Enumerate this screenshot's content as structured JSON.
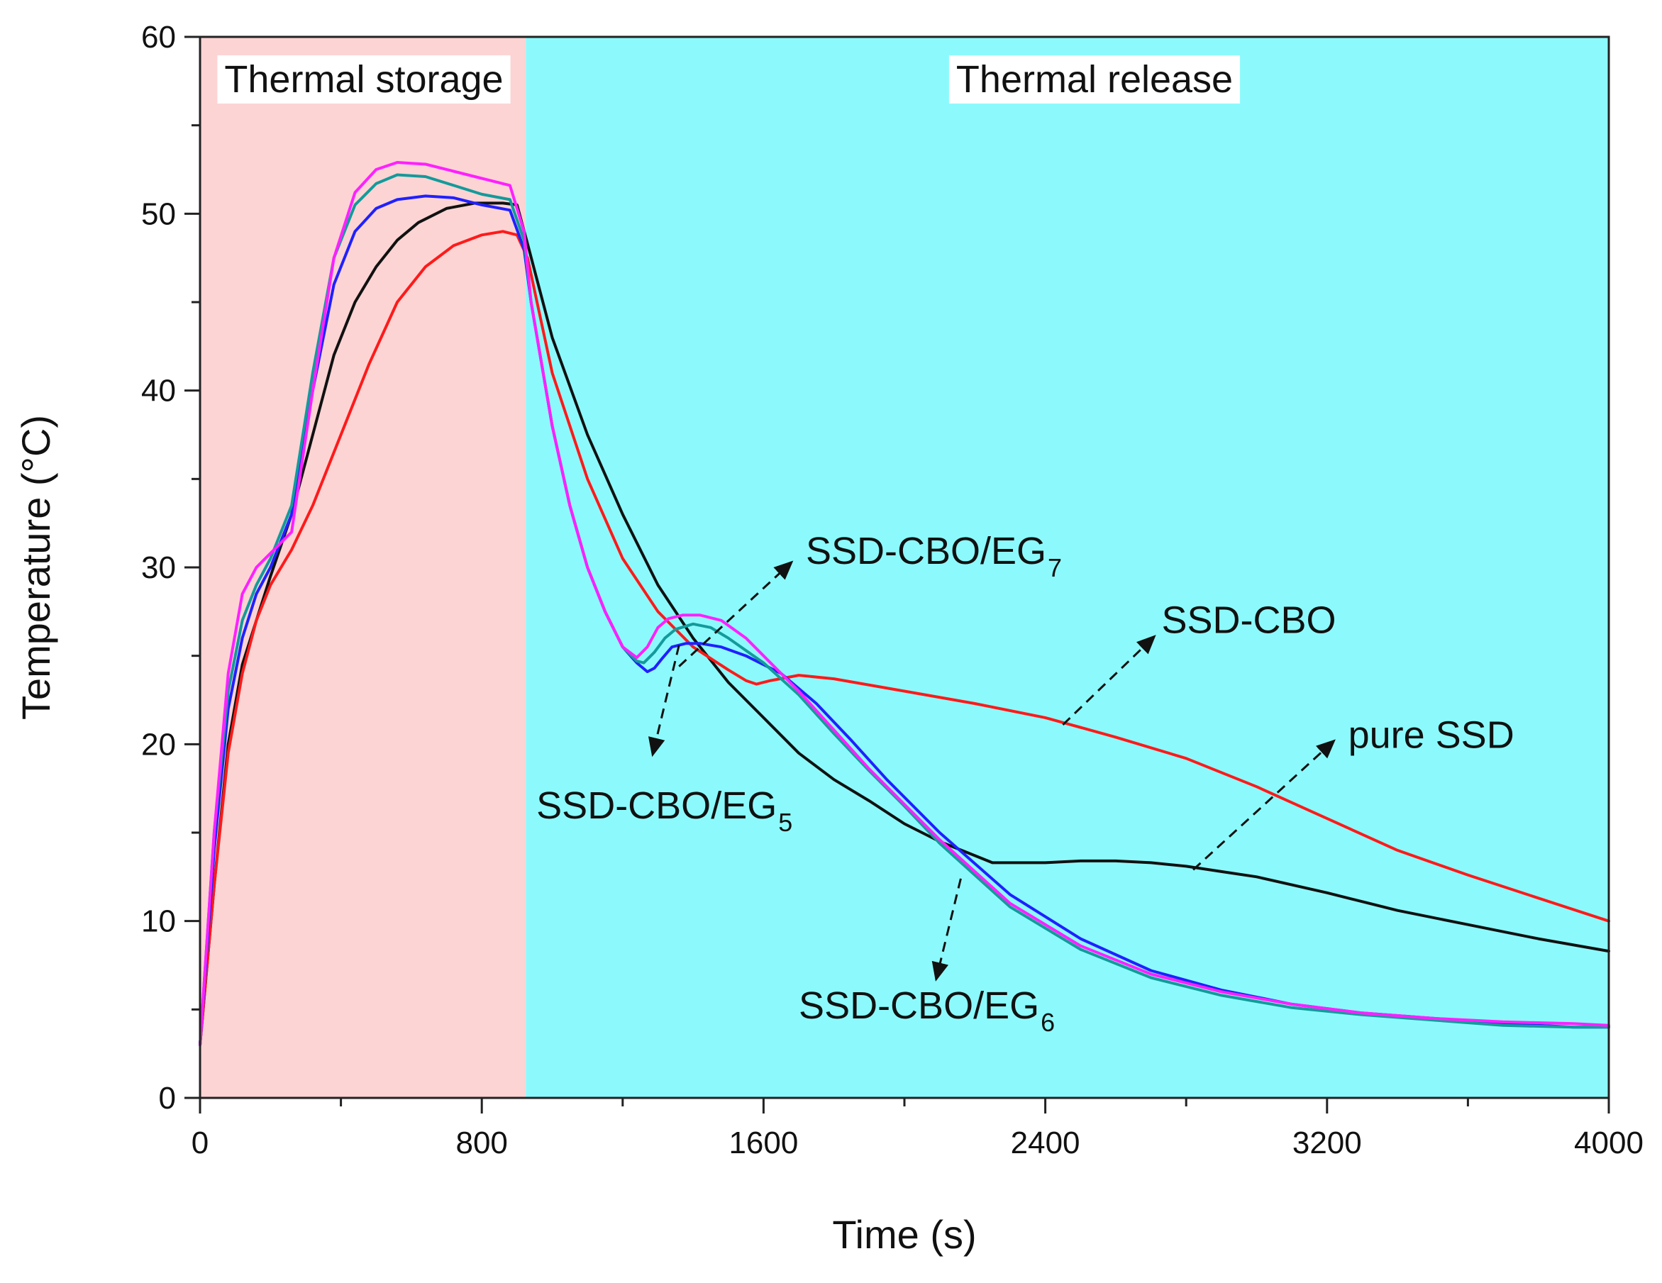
{
  "chart_data": {
    "type": "line",
    "title": "",
    "xlabel": "Time (s)",
    "ylabel": "Temperature (°C)",
    "xlim": [
      0,
      4000
    ],
    "ylim": [
      0,
      60
    ],
    "grid": false,
    "x_ticks": [
      0,
      800,
      1600,
      2400,
      3200,
      4000
    ],
    "x_tick_labels": [
      "0",
      "800",
      "1600",
      "2400",
      "3200",
      "4000"
    ],
    "y_ticks": [
      0,
      10,
      20,
      30,
      40,
      50,
      60
    ],
    "y_tick_labels": [
      "0",
      "10",
      "20",
      "30",
      "40",
      "50",
      "60"
    ],
    "regions": [
      {
        "name": "storage",
        "label": "Thermal storage",
        "x_start": 0,
        "x_end": 925,
        "color": "#fcd4d4"
      },
      {
        "name": "release",
        "label": "Thermal release",
        "x_start": 925,
        "x_end": 4000,
        "color": "#8cfafc"
      }
    ],
    "series": [
      {
        "name": "pure SSD",
        "color": "#111111",
        "x": [
          0,
          40,
          80,
          120,
          160,
          200,
          260,
          320,
          380,
          440,
          500,
          560,
          620,
          700,
          780,
          860,
          900,
          930,
          1000,
          1100,
          1200,
          1300,
          1400,
          1500,
          1600,
          1700,
          1800,
          1900,
          2000,
          2100,
          2200,
          2250,
          2300,
          2400,
          2500,
          2600,
          2700,
          2800,
          2900,
          3000,
          3200,
          3400,
          3600,
          3800,
          4000
        ],
        "y": [
          3,
          12,
          20,
          24.5,
          27,
          29.5,
          33,
          37.5,
          42,
          45,
          47,
          48.5,
          49.5,
          50.3,
          50.6,
          50.6,
          50.5,
          48.3,
          43,
          37.5,
          33,
          29,
          26,
          23.5,
          21.5,
          19.5,
          18,
          16.8,
          15.5,
          14.5,
          13.7,
          13.3,
          13.3,
          13.3,
          13.4,
          13.4,
          13.3,
          13.1,
          12.8,
          12.5,
          11.6,
          10.6,
          9.8,
          9.0,
          8.3
        ]
      },
      {
        "name": "SSD-CBO",
        "color": "#ff1a1a",
        "x": [
          0,
          40,
          80,
          120,
          160,
          200,
          260,
          320,
          400,
          480,
          560,
          640,
          720,
          800,
          860,
          900,
          930,
          1000,
          1100,
          1200,
          1300,
          1400,
          1500,
          1550,
          1580,
          1620,
          1700,
          1800,
          2000,
          2200,
          2400,
          2600,
          2800,
          3000,
          3200,
          3400,
          3600,
          3800,
          4000
        ],
        "y": [
          3,
          12,
          19.5,
          24,
          27,
          29,
          31,
          33.5,
          37.5,
          41.5,
          45,
          47,
          48.2,
          48.8,
          49,
          48.8,
          47.5,
          41,
          35,
          30.5,
          27.5,
          25.5,
          24.2,
          23.6,
          23.4,
          23.6,
          23.9,
          23.7,
          23,
          22.3,
          21.5,
          20.4,
          19.2,
          17.6,
          15.8,
          14,
          12.6,
          11.3,
          10
        ]
      },
      {
        "name": "SSD-CBO/EG5",
        "color": "#2020ff",
        "x": [
          0,
          40,
          80,
          120,
          160,
          200,
          260,
          320,
          380,
          440,
          500,
          560,
          640,
          720,
          800,
          880,
          920,
          940,
          1000,
          1050,
          1100,
          1150,
          1200,
          1240,
          1270,
          1290,
          1310,
          1340,
          1380,
          1420,
          1480,
          1550,
          1650,
          1750,
          1850,
          1950,
          2100,
          2300,
          2500,
          2700,
          2900,
          3100,
          3300,
          3500,
          3700,
          3900,
          4000
        ],
        "y": [
          3,
          14,
          22,
          26,
          28.5,
          30,
          33,
          40,
          46,
          49,
          50.3,
          50.8,
          51,
          50.9,
          50.5,
          50.2,
          48,
          45,
          38,
          33.5,
          30,
          27.5,
          25.5,
          24.6,
          24.1,
          24.3,
          24.8,
          25.5,
          25.7,
          25.7,
          25.5,
          25,
          24,
          22.3,
          20.2,
          18,
          15,
          11.5,
          9,
          7.2,
          6.1,
          5.3,
          4.8,
          4.5,
          4.2,
          4.0,
          4.0
        ]
      },
      {
        "name": "SSD-CBO/EG6",
        "color": "#149a9a",
        "x": [
          0,
          40,
          80,
          120,
          160,
          200,
          260,
          320,
          380,
          440,
          500,
          560,
          640,
          720,
          800,
          880,
          920,
          940,
          1000,
          1050,
          1100,
          1150,
          1200,
          1240,
          1260,
          1290,
          1320,
          1350,
          1400,
          1450,
          1500,
          1600,
          1700,
          1800,
          1900,
          2000,
          2100,
          2300,
          2500,
          2700,
          2900,
          3100,
          3300,
          3500,
          3700,
          3900,
          4000
        ],
        "y": [
          3,
          15,
          23,
          27,
          29,
          30.5,
          33.5,
          41,
          47.5,
          50.5,
          51.7,
          52.2,
          52.1,
          51.6,
          51.1,
          50.8,
          48.5,
          45,
          38,
          33.5,
          30,
          27.5,
          25.5,
          24.7,
          24.6,
          25.2,
          26,
          26.5,
          26.8,
          26.6,
          26,
          24.6,
          22.8,
          20.6,
          18.5,
          16.5,
          14.4,
          10.8,
          8.4,
          6.8,
          5.8,
          5.1,
          4.7,
          4.4,
          4.1,
          4.0,
          4.0
        ]
      },
      {
        "name": "SSD-CBO/EG7",
        "color": "#ff20ff",
        "x": [
          0,
          40,
          80,
          120,
          160,
          200,
          260,
          320,
          380,
          440,
          500,
          560,
          640,
          720,
          800,
          880,
          920,
          940,
          1000,
          1050,
          1100,
          1150,
          1200,
          1240,
          1270,
          1300,
          1330,
          1370,
          1420,
          1480,
          1550,
          1600,
          1700,
          1800,
          1900,
          2000,
          2100,
          2300,
          2500,
          2700,
          2900,
          3100,
          3300,
          3500,
          3700,
          3900,
          4000
        ],
        "y": [
          3,
          15,
          24,
          28.5,
          30,
          30.8,
          32,
          40,
          47.5,
          51.2,
          52.5,
          52.9,
          52.8,
          52.4,
          52,
          51.6,
          49,
          45,
          38,
          33.5,
          30,
          27.5,
          25.5,
          24.9,
          25.5,
          26.6,
          27.1,
          27.3,
          27.3,
          27,
          26,
          25,
          23,
          20.8,
          18.6,
          16.6,
          14.6,
          11,
          8.6,
          7,
          6,
          5.3,
          4.8,
          4.5,
          4.3,
          4.2,
          4.1
        ]
      }
    ],
    "annotations": [
      {
        "name": "SSD-CBO/EG7",
        "text": "SSD-CBO/EG",
        "subscript": "7",
        "text_pos": [
          1720,
          30.2
        ],
        "arrow_from": [
          1360,
          24.4
        ],
        "arrow_to": [
          1680,
          30.3
        ]
      },
      {
        "name": "SSD-CBO",
        "text": "SSD-CBO",
        "subscript": "",
        "text_pos": [
          2730,
          26.3
        ],
        "arrow_from": [
          2450,
          21.1
        ],
        "arrow_to": [
          2710,
          26.1
        ]
      },
      {
        "name": "pure SSD",
        "text": "pure SSD",
        "subscript": "",
        "text_pos": [
          3260,
          19.8
        ],
        "arrow_from": [
          2820,
          12.9
        ],
        "arrow_to": [
          3220,
          20.2
        ]
      },
      {
        "name": "SSD-CBO/EG5",
        "text": "SSD-CBO/EG",
        "subscript": "5",
        "text_pos": [
          955,
          15.8
        ],
        "arrow_from": [
          1360,
          25.6
        ],
        "arrow_to": [
          1285,
          19.4
        ]
      },
      {
        "name": "SSD-CBO/EG6",
        "text": "SSD-CBO/EG",
        "subscript": "6",
        "text_pos": [
          1700,
          4.5
        ],
        "arrow_from": [
          2160,
          12.4
        ],
        "arrow_to": [
          2090,
          6.7
        ]
      }
    ]
  }
}
